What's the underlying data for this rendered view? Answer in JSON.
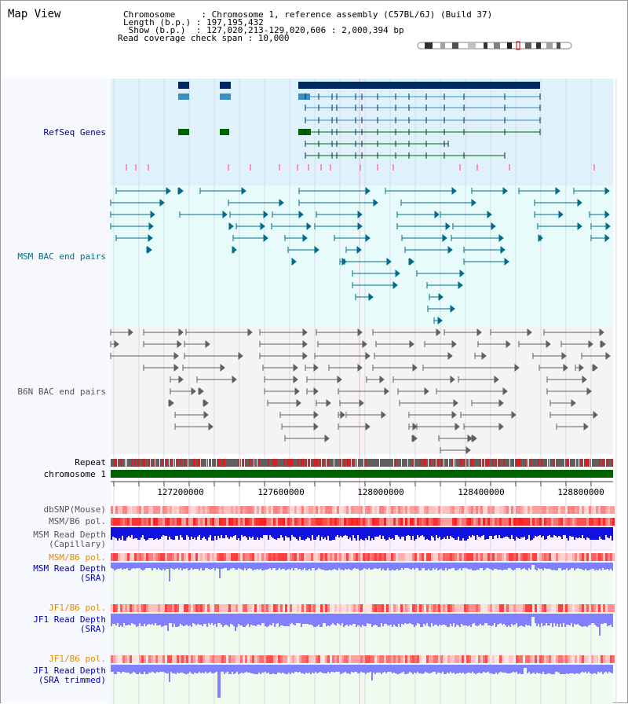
{
  "page": {
    "title": "Map View"
  },
  "header": {
    "lines": [
      "Chromosome     : Chromosome 1, reference assembly (C57BL/6J) (Build 37)",
      "Length (b.p.) : 197,195,432",
      " Show (b.p.)  : 127,020,213-129,020,606 : 2,000,394 bp",
      "Read coverage check span : 10,000"
    ]
  },
  "tracks": {
    "refseq": {
      "label": "RefSeq Genes",
      "color": "#000080"
    },
    "msm_bac": {
      "label": "MSM BAC end pairs",
      "color": "#006c8a"
    },
    "b6n_bac": {
      "label": "B6N BAC end pairs",
      "color": "#555555"
    },
    "repeat": {
      "label": "Repeat"
    },
    "chromosome": {
      "label": "chromosome 1"
    },
    "dbsnp": {
      "label": "dbSNP(Mouse)"
    },
    "msm_b6_pol": {
      "label": "MSM/B6 pol."
    },
    "msm_depth_cap": {
      "label_1": "MSM Read Depth",
      "label_2": "(Capillary)"
    },
    "msm_b6_pol_sra": {
      "label": "MSM/B6 pol."
    },
    "msm_depth_sra": {
      "label_1": "MSM Read Depth",
      "label_2": "(SRA)"
    },
    "jf1_b6_pol_sra": {
      "label": "JF1/B6 pol."
    },
    "jf1_depth_sra": {
      "label_1": "JF1 Read Depth",
      "label_2": "(SRA)"
    },
    "jf1_b6_pol_trim": {
      "label": "JF1/B6 pol."
    },
    "jf1_depth_trim": {
      "label_1": "JF1 Read Depth",
      "label_2": "(SRA trimmed)"
    }
  },
  "axis": {
    "ticks": [
      "127200000",
      "127600000",
      "128000000",
      "128400000",
      "128800000"
    ]
  },
  "colors": {
    "refseq_bg": "#dff2fb",
    "msm_bg": "#e8fbfb",
    "b6n_bg": "#f4f4f4",
    "depth_bg": "#fbf0fb",
    "sra_bg": "#f0fbf0",
    "refseq_dark": "#002a60",
    "refseq_mid": "#3a8fc0",
    "refseq_green": "#006400",
    "msm_line": "#006c8a",
    "b6n_line": "#606060",
    "chrom_green": "#006400",
    "repeat_red": "#d82020",
    "depth_blue": "#1010e0",
    "sra_blue": "#8080ff",
    "pol_red": "#ff4040",
    "pol_pink": "#ffb0b0"
  }
}
